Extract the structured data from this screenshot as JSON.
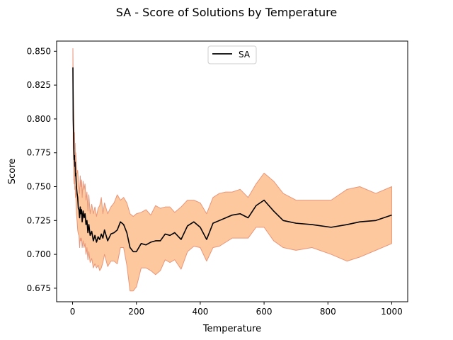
{
  "chart_data": {
    "type": "line",
    "title": "SA - Score of Solutions by Temperature",
    "xlabel": "Temperature",
    "ylabel": "Score",
    "xlim": [
      -50,
      1050
    ],
    "ylim": [
      0.665,
      0.8575
    ],
    "xticks": [
      0,
      200,
      400,
      600,
      800,
      1000
    ],
    "yticks": [
      0.675,
      0.7,
      0.725,
      0.75,
      0.775,
      0.8,
      0.825,
      0.85
    ],
    "grid": false,
    "legend": {
      "placement": "top-center",
      "entries": [
        "SA"
      ]
    },
    "colors": {
      "line": "#000000",
      "band_fill": "#fdc89d",
      "band_edge": "#e8967a"
    },
    "series": [
      {
        "name": "SA",
        "x": [
          1,
          2,
          3,
          4,
          5,
          6,
          7,
          8,
          9,
          10,
          12,
          14,
          16,
          18,
          20,
          22,
          24,
          26,
          28,
          30,
          33,
          36,
          39,
          42,
          45,
          48,
          51,
          55,
          60,
          65,
          70,
          75,
          80,
          85,
          90,
          95,
          100,
          110,
          120,
          130,
          140,
          150,
          160,
          170,
          180,
          190,
          200,
          215,
          230,
          245,
          260,
          275,
          290,
          305,
          320,
          340,
          360,
          380,
          400,
          420,
          440,
          460,
          480,
          500,
          525,
          550,
          575,
          600,
          630,
          660,
          700,
          750,
          810,
          860,
          900,
          950,
          1000
        ],
        "y": [
          0.838,
          0.8,
          0.79,
          0.778,
          0.77,
          0.773,
          0.765,
          0.768,
          0.758,
          0.76,
          0.75,
          0.745,
          0.742,
          0.734,
          0.733,
          0.727,
          0.735,
          0.73,
          0.733,
          0.724,
          0.732,
          0.727,
          0.73,
          0.722,
          0.725,
          0.716,
          0.722,
          0.714,
          0.717,
          0.71,
          0.714,
          0.709,
          0.713,
          0.711,
          0.715,
          0.712,
          0.718,
          0.71,
          0.715,
          0.716,
          0.718,
          0.724,
          0.722,
          0.716,
          0.705,
          0.702,
          0.702,
          0.708,
          0.707,
          0.709,
          0.71,
          0.71,
          0.715,
          0.714,
          0.716,
          0.711,
          0.721,
          0.724,
          0.72,
          0.711,
          0.723,
          0.725,
          0.727,
          0.729,
          0.73,
          0.727,
          0.736,
          0.74,
          0.732,
          0.725,
          0.723,
          0.722,
          0.72,
          0.722,
          0.724,
          0.725,
          0.729
        ],
        "band_upper": [
          0.852,
          0.825,
          0.81,
          0.8,
          0.785,
          0.79,
          0.778,
          0.782,
          0.772,
          0.775,
          0.768,
          0.76,
          0.762,
          0.755,
          0.75,
          0.745,
          0.758,
          0.75,
          0.755,
          0.742,
          0.754,
          0.748,
          0.752,
          0.74,
          0.746,
          0.732,
          0.744,
          0.73,
          0.737,
          0.73,
          0.735,
          0.728,
          0.734,
          0.736,
          0.742,
          0.73,
          0.738,
          0.73,
          0.735,
          0.738,
          0.744,
          0.74,
          0.742,
          0.738,
          0.73,
          0.728,
          0.73,
          0.731,
          0.733,
          0.729,
          0.736,
          0.734,
          0.735,
          0.735,
          0.731,
          0.735,
          0.74,
          0.74,
          0.738,
          0.73,
          0.742,
          0.745,
          0.746,
          0.746,
          0.748,
          0.742,
          0.752,
          0.76,
          0.754,
          0.745,
          0.74,
          0.74,
          0.74,
          0.748,
          0.75,
          0.745,
          0.75
        ],
        "band_lower": [
          0.822,
          0.778,
          0.768,
          0.755,
          0.752,
          0.758,
          0.748,
          0.75,
          0.742,
          0.745,
          0.73,
          0.725,
          0.718,
          0.715,
          0.714,
          0.705,
          0.712,
          0.71,
          0.712,
          0.705,
          0.71,
          0.705,
          0.708,
          0.7,
          0.705,
          0.696,
          0.702,
          0.694,
          0.697,
          0.69,
          0.693,
          0.69,
          0.692,
          0.688,
          0.69,
          0.694,
          0.7,
          0.691,
          0.695,
          0.695,
          0.693,
          0.705,
          0.705,
          0.692,
          0.673,
          0.673,
          0.676,
          0.69,
          0.69,
          0.688,
          0.685,
          0.688,
          0.696,
          0.694,
          0.696,
          0.689,
          0.702,
          0.706,
          0.705,
          0.695,
          0.705,
          0.706,
          0.709,
          0.712,
          0.712,
          0.712,
          0.72,
          0.72,
          0.71,
          0.705,
          0.703,
          0.705,
          0.7,
          0.695,
          0.698,
          0.703,
          0.708
        ]
      }
    ]
  }
}
